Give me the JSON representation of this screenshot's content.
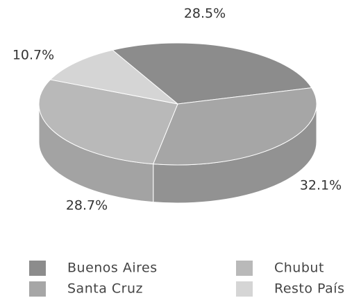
{
  "chart_data": {
    "type": "pie3d",
    "categories": [
      "Buenos Aires",
      "Santa Cruz",
      "Chubut",
      "Resto País"
    ],
    "values": [
      28.5,
      32.1,
      28.7,
      10.7
    ],
    "value_labels": [
      "28.5%",
      "32.1%",
      "28.7%",
      "10.7%"
    ],
    "colors": [
      "#8c8c8c",
      "#a6a6a6",
      "#b9b9b9",
      "#d5d5d5"
    ]
  }
}
